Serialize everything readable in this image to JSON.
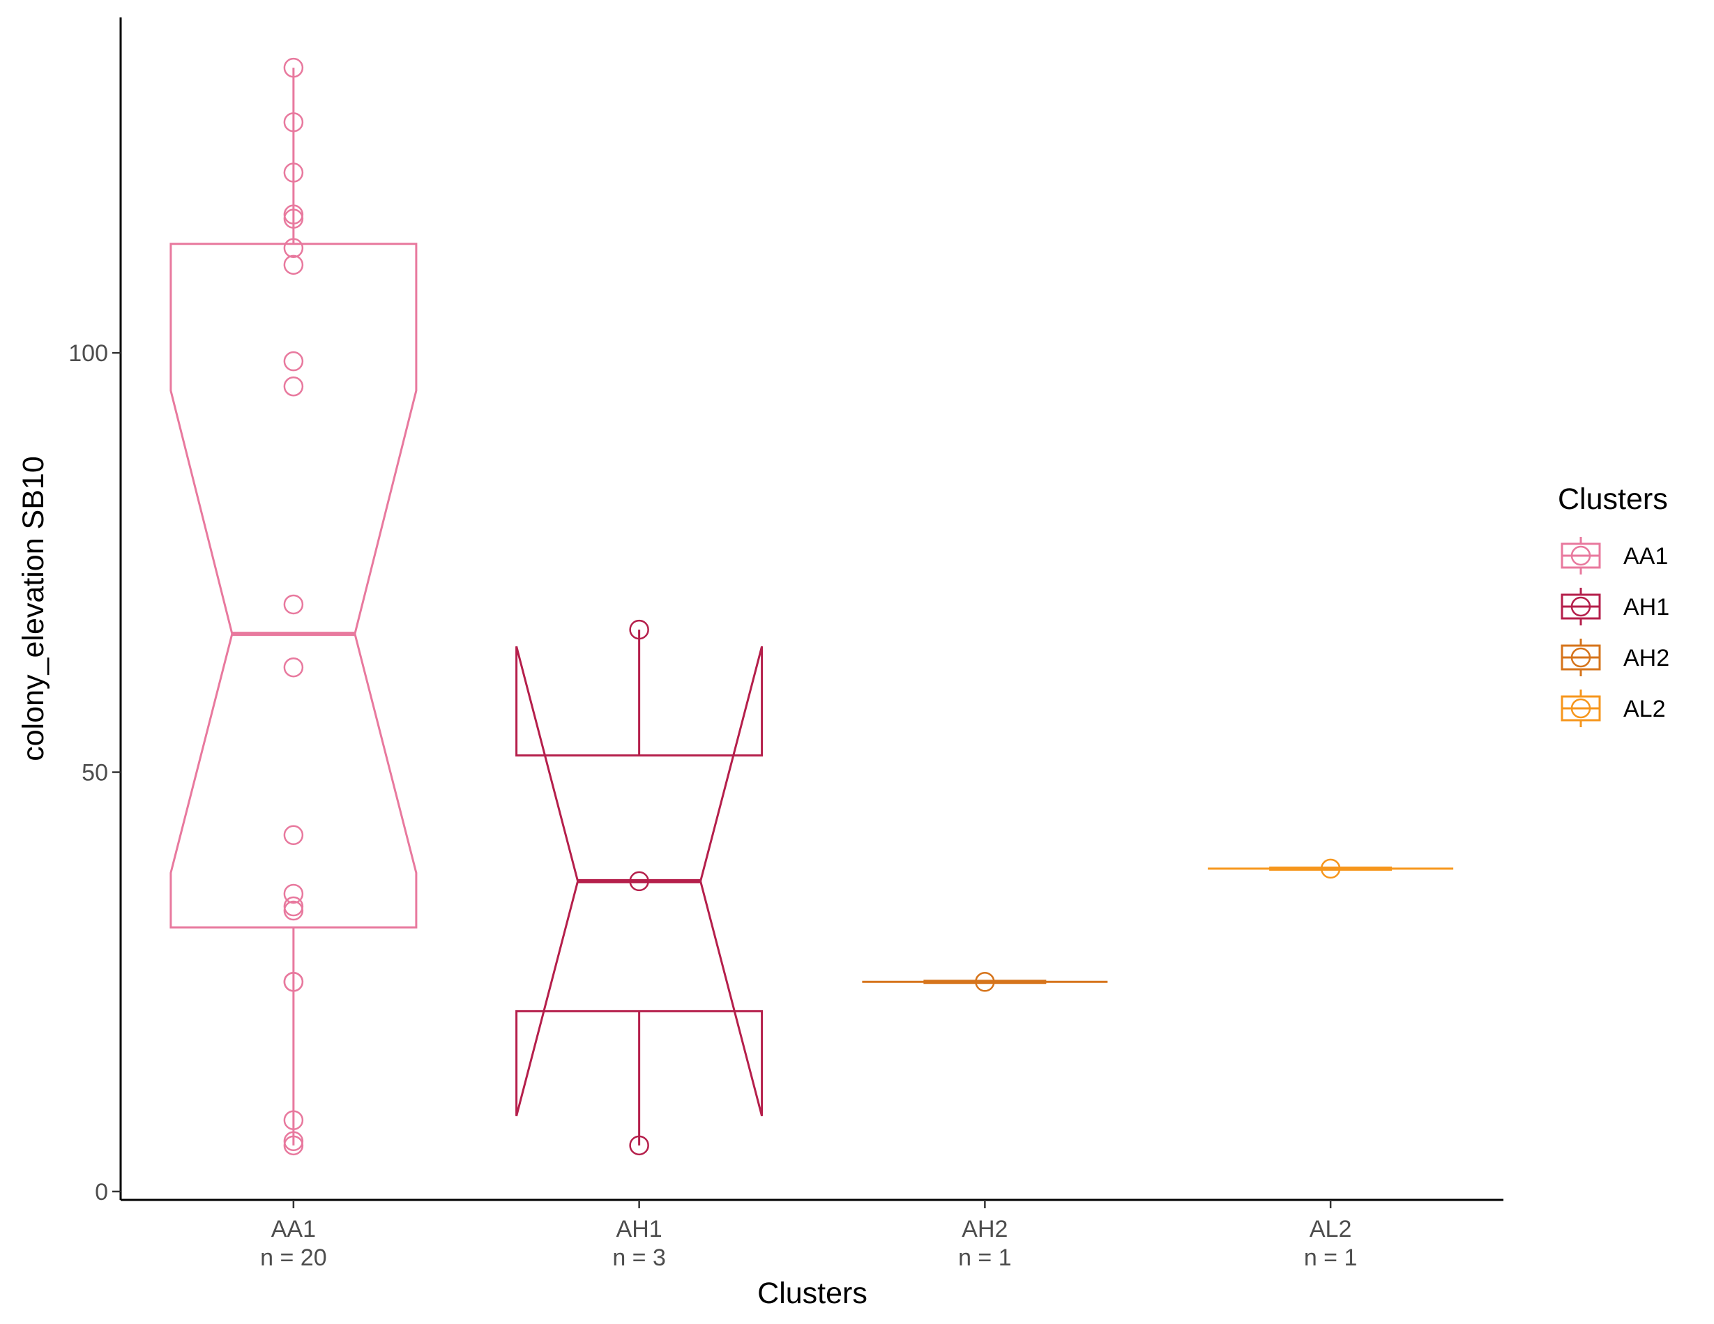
{
  "chart_data": {
    "type": "box",
    "notched": true,
    "xlabel": "Clusters",
    "ylabel": "colony_elevation SB10",
    "ylim": [
      -1,
      140
    ],
    "yticks": [
      0,
      50,
      100
    ],
    "ytick_labels": [
      "0",
      "50",
      "100"
    ],
    "grid": false,
    "legend": {
      "title": "Clusters",
      "placement": "right",
      "entries": [
        "AA1",
        "AH1",
        "AH2",
        "AL2"
      ]
    },
    "categories": [
      "AA1",
      "AH1",
      "AH2",
      "AL2"
    ],
    "category_sublabels": [
      "n = 20",
      "n = 3",
      "n = 1",
      "n = 1"
    ],
    "colors": {
      "AA1": "#E8799E",
      "AH1": "#B51F4B",
      "AH2": "#D6741B",
      "AL2": "#F6961C"
    },
    "series": [
      {
        "name": "AA1",
        "box": {
          "min": 5.5,
          "q1": 31.5,
          "median": 66.5,
          "q3": 113,
          "max": 134,
          "notch_low": 38,
          "notch_high": 95.5
        },
        "points": [
          134,
          127.5,
          121.5,
          116.5,
          116,
          112.5,
          110.5,
          99,
          96,
          70,
          62.5,
          42.5,
          35.5,
          34,
          33.5,
          25,
          25,
          8.5,
          6,
          5.5
        ]
      },
      {
        "name": "AH1",
        "box": {
          "min": 5.5,
          "q1": 21.5,
          "median": 37,
          "q3": 52,
          "max": 67,
          "notch_low": 9,
          "notch_high": 65
        },
        "points": [
          67,
          37,
          5.5
        ]
      },
      {
        "name": "AH2",
        "box": {
          "min": 25,
          "q1": 25,
          "median": 25,
          "q3": 25,
          "max": 25,
          "notch_low": 25,
          "notch_high": 25
        },
        "points": [
          25
        ]
      },
      {
        "name": "AL2",
        "box": {
          "min": 38.5,
          "q1": 38.5,
          "median": 38.5,
          "q3": 38.5,
          "max": 38.5,
          "notch_low": 38.5,
          "notch_high": 38.5
        },
        "points": [
          38.5
        ]
      }
    ]
  }
}
